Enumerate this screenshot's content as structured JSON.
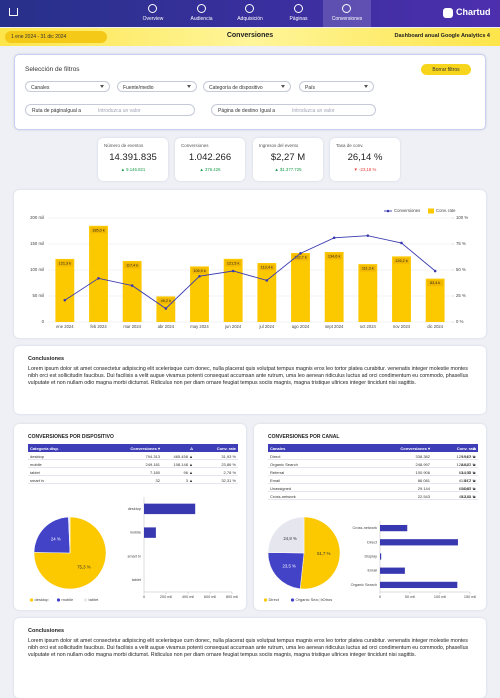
{
  "nav": {
    "tabs": [
      "Overview",
      "Audiencia",
      "Adquisición",
      "Páginas",
      "Conversiones"
    ],
    "active": 4,
    "logo": "Chartud"
  },
  "header": {
    "date_range": "1 ene 2024 - 31 dic 2024",
    "title": "Conversiones",
    "subtitle": "Dashboard anual Google Analytics 4"
  },
  "filters": {
    "title": "Selección de filtros",
    "reset": "Borrar filtros",
    "dropdowns": [
      "Canales",
      "Fuente/medio",
      "Categoría de dispositivo",
      "País"
    ],
    "inputs": [
      {
        "label": "Ruta de página",
        "operator": "Igual a",
        "placeholder": "Introduzca un valor"
      },
      {
        "label": "Página de destino",
        "operator": "Igual a",
        "placeholder": "Introduzca un valor"
      }
    ]
  },
  "kpis": [
    {
      "label": "Número de eventos",
      "value": "14.391.835",
      "delta": "▲ 9.146.821",
      "color": "#1a9b4b"
    },
    {
      "label": "Conversiones",
      "value": "1.042.266",
      "delta": "▲ 376.426",
      "color": "#1a9b4b"
    },
    {
      "label": "Ingresos del evento",
      "value": "$2,27 M",
      "delta": "▲ $1.377.725",
      "color": "#1a9b4b"
    },
    {
      "label": "Tasa de conv.",
      "value": "26,14 %",
      "delta": "▼ -23,18 %",
      "color": "#e53935"
    }
  ],
  "conclusions": [
    {
      "title": "Conclusiones",
      "text": "Lorem ipsum dolor sit amet consectetur adipiscing elit scelerisque cum donec, nulla placerat quis volutpat tempus magnis eros leo tortor platea curabitur. venenatis integer molestie montes nibh orci est sollicitudin faucibus. Dui facilisis a velit augue vivamus potenti consequat accumsan ante rutrum, uma leo aenean ridiculus luctus ad orci condimentum eu commodo, phasellus vulputate et non nullam odio magna morbi dictumst. Ridiculus non per diam ornare feugiat tempus sociis magnis, magna tristique ultrices integer tincidunt nisi sagittis."
    },
    {
      "title": "Conclusiones",
      "text": "Lorem ipsum dolor sit amet consectetur adipiscing elit scelerisque cum donec, nulla placerat quis volutpat tempus magnis eros leo tortor platea curabitur. venenatis integer molestie montes nibh orci est sollicitudin faucibus. Dui facilisis a velit augue vivamus potenti consequat accumsan ante rutrum, uma leo aenean ridiculus luctus ad orci condimentum eu commodo, phasellus vulputate et non nullam odio magna morbi dictumst. Ridiculus non per diam ornare feugiat tempus sociis magnis, magna tristique ultrices integer tincidunt nisi sagittis."
    }
  ],
  "tables": [
    {
      "title": "CONVERSIONES POR DISPOSITIVO",
      "columns": [
        "Categoría disp.",
        "Conversiones ▾",
        "Δ",
        "Conv. rate"
      ],
      "rows": [
        [
          "desktop",
          "794.313",
          "465.458 ▲",
          "31,93 %"
        ],
        [
          "mobile",
          "249.181",
          "108.148 ▲",
          "23,86 %"
        ],
        [
          "tablet",
          "7.180",
          "96 ▲",
          "2,78 %"
        ],
        [
          "smart tv",
          "32",
          "3 ▲",
          "32,31 %"
        ]
      ]
    },
    {
      "title": "CONVERSIONES POR CANAL",
      "columns": [
        "Canales",
        "Conversiones ▾",
        "Δ",
        "Conv. rate"
      ],
      "rows": [
        [
          "Direct",
          "338.382",
          "129.917 ▲",
          "19,03 %"
        ],
        [
          "Organic Search",
          "248.997",
          "128.847 ▲",
          "44,21 %"
        ],
        [
          "Referral",
          "100.906",
          "63.195 ▲",
          "44,32 %"
        ],
        [
          "Email",
          "86.081",
          "41.472 ▲",
          "54,7 %"
        ],
        [
          "Unassigned",
          "29.144",
          "60.060 ▲",
          "36,87 %"
        ],
        [
          "Cross-network",
          "22.543",
          "45.431 ▲",
          "42,44 %"
        ]
      ]
    }
  ],
  "chart_data": [
    {
      "type": "bar_line",
      "categories": [
        "ene 2024",
        "feb 2024",
        "mar 2024",
        "abr 2024",
        "may 2024",
        "jun 2024",
        "jul 2024",
        "ago 2024",
        "sept 2024",
        "oct 2024",
        "nov 2024",
        "dic 2024"
      ],
      "series": [
        {
          "name": "Conversiones",
          "color": "#fcc800",
          "values": [
            121300,
            185000,
            117400,
            49200,
            106900,
            121500,
            113400,
            132700,
            134600,
            111300,
            126200,
            83400
          ],
          "value_labels": [
            "121,3 k",
            "185,0 k",
            "117,4 k",
            "49,2 k",
            "106,9 k",
            "121,5 k",
            "113,4 k",
            "132,7 k",
            "134,6 k",
            "111,3 k",
            "126,2 k",
            "83,4 k"
          ]
        },
        {
          "name": "Conv. rate",
          "color": "#3b3bb0",
          "axis": "y2",
          "values": [
            21,
            42,
            35,
            13,
            44,
            49,
            40,
            66,
            81,
            83,
            76,
            49
          ]
        }
      ],
      "ylim": [
        0,
        200000
      ],
      "yticks": [
        0,
        {
          "value": 50000,
          "label": "50 mil"
        },
        {
          "value": 100000,
          "label": "100 mil"
        },
        {
          "value": 150000,
          "label": "150 mil"
        },
        {
          "value": 200000,
          "label": "200 mil"
        }
      ],
      "y2lim": [
        0,
        100
      ],
      "y2ticks": [
        {
          "value": 0,
          "label": "0 %"
        },
        {
          "value": 25,
          "label": "25 %"
        },
        {
          "value": 50,
          "label": "50 %"
        },
        {
          "value": 75,
          "label": "75 %"
        },
        {
          "value": 100,
          "label": "100 %"
        }
      ],
      "grid": true,
      "legend": "top-right"
    },
    {
      "type": "pie",
      "categories": [
        "desktop",
        "mobile",
        "tablet"
      ],
      "values": [
        75.3,
        24,
        0.7
      ],
      "value_labels": [
        "75,3 %",
        "24 %",
        null
      ],
      "colors": [
        "#fcc800",
        "#4343c8",
        "#e6e6ef"
      ],
      "legend": "bottom"
    },
    {
      "type": "hbar",
      "categories": [
        "desktop",
        "mobile",
        "smart tv",
        "tablet"
      ],
      "values": [
        465458,
        108148,
        3,
        96
      ],
      "color": "#3838b0",
      "xlim": [
        0,
        800000
      ],
      "xticks": [
        0,
        {
          "value": 200000,
          "label": "200 mil"
        },
        {
          "value": 400000,
          "label": "400 mil"
        },
        {
          "value": 600000,
          "label": "600 mil"
        },
        {
          "value": 800000,
          "label": "800 mil"
        }
      ]
    },
    {
      "type": "pie",
      "categories": [
        "Direct",
        "Organic Search",
        "Otros"
      ],
      "values": [
        51.7,
        23.5,
        24.8
      ],
      "value_labels": [
        "51,7 %",
        "23,5 %",
        "24,8 %"
      ],
      "colors": [
        "#fcc800",
        "#4343c8",
        "#e6e6ef"
      ],
      "legend": "bottom"
    },
    {
      "type": "hbar",
      "categories": [
        "Cross-network",
        "Direct",
        "Display",
        "Email",
        "Organic Search"
      ],
      "values": [
        45431,
        129917,
        2000,
        41472,
        128847
      ],
      "color": "#3838b0",
      "xlim": [
        0,
        150000
      ],
      "xticks": [
        0,
        {
          "value": 50000,
          "label": "50 mil"
        },
        {
          "value": 100000,
          "label": "100 mil"
        },
        {
          "value": 150000,
          "label": "150 mil"
        }
      ]
    }
  ]
}
